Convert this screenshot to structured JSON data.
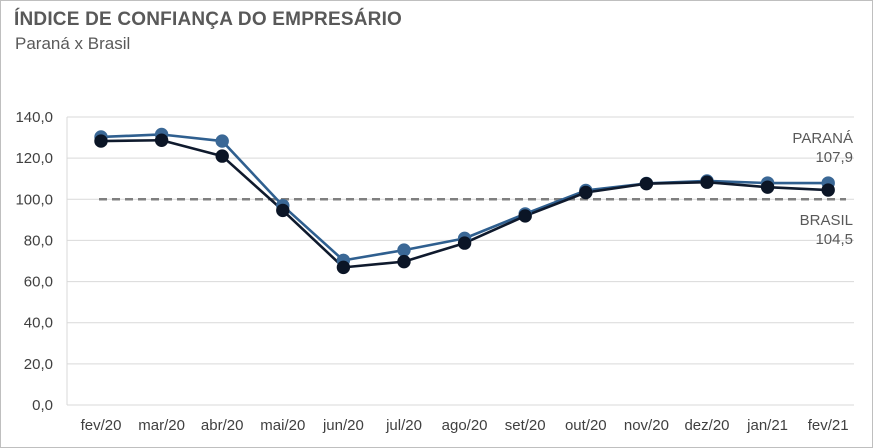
{
  "header": {
    "title": "ÍNDICE DE CONFIANÇA DO EMPRESÁRIO",
    "subtitle": "Paraná x Brasil"
  },
  "colors": {
    "parana": "#2f5f8f",
    "parana_marker": "#3b6896",
    "brasil": "#0f1a2d",
    "brasil_marker": "#0b1526",
    "reference_line": "#7f7f7f",
    "grid": "#d9d9d9"
  },
  "chart_data": {
    "type": "line",
    "title": "ÍNDICE DE CONFIANÇA DO EMPRESÁRIO",
    "subtitle": "Paraná x Brasil",
    "categories": [
      "fev/20",
      "mar/20",
      "abr/20",
      "mai/20",
      "jun/20",
      "jul/20",
      "ago/20",
      "set/20",
      "out/20",
      "nov/20",
      "dez/20",
      "jan/21",
      "fev/21"
    ],
    "series": [
      {
        "name": "PARANÁ",
        "values": [
          130.3,
          131.5,
          128.3,
          96.9,
          70.3,
          75.3,
          81.0,
          92.9,
          104.3,
          107.7,
          108.9,
          107.9,
          107.9
        ]
      },
      {
        "name": "BRASIL",
        "values": [
          128.3,
          128.7,
          121.0,
          94.6,
          66.9,
          69.7,
          78.7,
          91.9,
          103.3,
          107.6,
          108.3,
          105.9,
          104.5
        ]
      }
    ],
    "reference_line": 100,
    "ylim": [
      0,
      140
    ],
    "yticks": [
      "0,0",
      "20,0",
      "40,0",
      "60,0",
      "80,0",
      "100,0",
      "120,0",
      "140,0"
    ],
    "end_labels": [
      {
        "series": "PARANÁ",
        "name": "PARANÁ",
        "value": "107,9"
      },
      {
        "series": "BRASIL",
        "name": "BRASIL",
        "value": "104,5"
      }
    ],
    "grid": true,
    "legend": "none"
  }
}
